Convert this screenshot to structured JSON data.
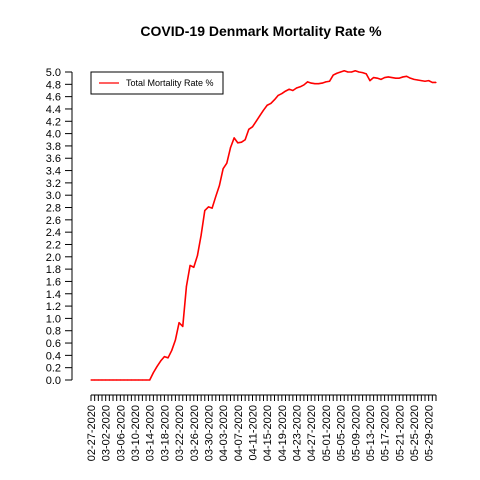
{
  "chart_data": {
    "type": "line",
    "title": "COVID-19 Denmark Mortality Rate %",
    "xlabel": "",
    "ylabel": "",
    "ylim": [
      0,
      5
    ],
    "y_ticks": [
      "0.0",
      "0.2",
      "0.4",
      "0.6",
      "0.8",
      "1.0",
      "1.2",
      "1.4",
      "1.6",
      "1.8",
      "2.0",
      "2.2",
      "2.4",
      "2.6",
      "2.8",
      "3.0",
      "3.2",
      "3.4",
      "3.6",
      "3.8",
      "4.0",
      "4.2",
      "4.4",
      "4.6",
      "4.8",
      "5.0"
    ],
    "x_tick_labels": [
      "02-27-2020",
      "03-02-2020",
      "03-06-2020",
      "03-10-2020",
      "03-14-2020",
      "03-18-2020",
      "03-22-2020",
      "03-26-2020",
      "03-30-2020",
      "04-03-2020",
      "04-07-2020",
      "04-11-2020",
      "04-15-2020",
      "04-19-2020",
      "04-23-2020",
      "04-27-2020",
      "05-01-2020",
      "05-05-2020",
      "05-09-2020",
      "05-13-2020",
      "05-17-2020",
      "05-21-2020",
      "05-25-2020",
      "05-29-2020"
    ],
    "grid": false,
    "legend_position": "top-left",
    "series": [
      {
        "name": "Total Mortality Rate %",
        "color": "#ff0000",
        "x": [
          "02-27-2020",
          "02-28-2020",
          "02-29-2020",
          "03-01-2020",
          "03-02-2020",
          "03-03-2020",
          "03-04-2020",
          "03-05-2020",
          "03-06-2020",
          "03-07-2020",
          "03-08-2020",
          "03-09-2020",
          "03-10-2020",
          "03-11-2020",
          "03-12-2020",
          "03-13-2020",
          "03-14-2020",
          "03-15-2020",
          "03-16-2020",
          "03-17-2020",
          "03-18-2020",
          "03-19-2020",
          "03-20-2020",
          "03-21-2020",
          "03-22-2020",
          "03-23-2020",
          "03-24-2020",
          "03-25-2020",
          "03-26-2020",
          "03-27-2020",
          "03-28-2020",
          "03-29-2020",
          "03-30-2020",
          "03-31-2020",
          "04-01-2020",
          "04-02-2020",
          "04-03-2020",
          "04-04-2020",
          "04-05-2020",
          "04-06-2020",
          "04-07-2020",
          "04-08-2020",
          "04-09-2020",
          "04-10-2020",
          "04-11-2020",
          "04-12-2020",
          "04-13-2020",
          "04-14-2020",
          "04-15-2020",
          "04-16-2020",
          "04-17-2020",
          "04-18-2020",
          "04-19-2020",
          "04-20-2020",
          "04-21-2020",
          "04-22-2020",
          "04-23-2020",
          "04-24-2020",
          "04-25-2020",
          "04-26-2020",
          "04-27-2020",
          "04-28-2020",
          "04-29-2020",
          "04-30-2020",
          "05-01-2020",
          "05-02-2020",
          "05-03-2020",
          "05-04-2020",
          "05-05-2020",
          "05-06-2020",
          "05-07-2020",
          "05-08-2020",
          "05-09-2020",
          "05-10-2020",
          "05-11-2020",
          "05-12-2020",
          "05-13-2020",
          "05-14-2020",
          "05-15-2020",
          "05-16-2020",
          "05-17-2020",
          "05-18-2020",
          "05-19-2020",
          "05-20-2020",
          "05-21-2020",
          "05-22-2020",
          "05-23-2020",
          "05-24-2020",
          "05-25-2020",
          "05-26-2020",
          "05-27-2020",
          "05-28-2020",
          "05-29-2020",
          "05-30-2020",
          "05-31-2020"
        ],
        "values": [
          0,
          0,
          0,
          0,
          0,
          0,
          0,
          0,
          0,
          0,
          0,
          0,
          0,
          0,
          0,
          0,
          0,
          0.12,
          0.22,
          0.31,
          0.38,
          0.36,
          0.48,
          0.65,
          0.93,
          0.87,
          1.52,
          1.86,
          1.83,
          2.02,
          2.35,
          2.75,
          2.81,
          2.79,
          2.98,
          3.16,
          3.43,
          3.52,
          3.77,
          3.93,
          3.85,
          3.86,
          3.9,
          4.07,
          4.11,
          4.2,
          4.29,
          4.38,
          4.46,
          4.49,
          4.55,
          4.62,
          4.65,
          4.69,
          4.72,
          4.7,
          4.74,
          4.76,
          4.79,
          4.84,
          4.82,
          4.81,
          4.81,
          4.82,
          4.84,
          4.85,
          4.95,
          4.98,
          5.0,
          5.02,
          5.0,
          5.0,
          5.02,
          5.0,
          4.99,
          4.97,
          4.86,
          4.91,
          4.9,
          4.88,
          4.91,
          4.92,
          4.91,
          4.9,
          4.9,
          4.92,
          4.93,
          4.9,
          4.88,
          4.87,
          4.86,
          4.85,
          4.86,
          4.83,
          4.83
        ]
      }
    ]
  }
}
